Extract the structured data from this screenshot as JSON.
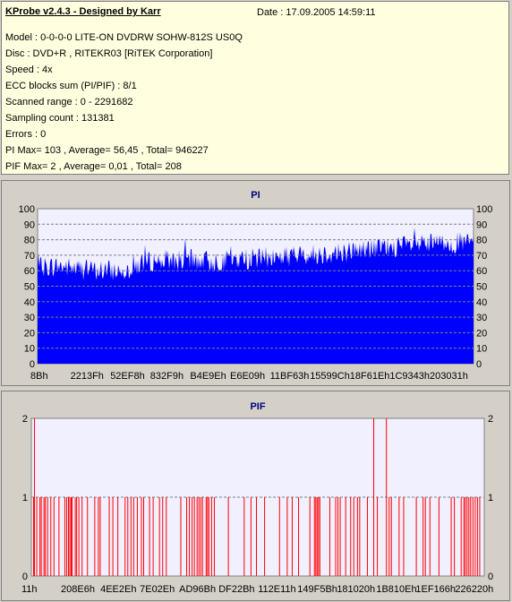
{
  "header": {
    "title": "KProbe v2.4.3 - Designed by Karr",
    "date": "Date : 17.09.2005 14:59:11",
    "lines": [
      "Model : 0-0-0-0 LITE-ON DVDRW SOHW-812S  US0Q",
      "Disc : DVD+R , RITEKR03 [RiTEK Corporation]",
      "Speed : 4x",
      "ECC blocks sum (PI/PIF) : 8/1",
      "Scanned range : 0 - 2291682",
      "Sampling count : 131381",
      "Errors : 0",
      "PI Max= 103 , Average= 56,45 , Total= 946227",
      "PIF Max= 2 , Average= 0,01 , Total= 208"
    ]
  },
  "chart_data": [
    {
      "type": "area",
      "title": "PI",
      "xlabel": "",
      "ylabel": "",
      "ylim": [
        0,
        100
      ],
      "yticks": [
        0,
        10,
        20,
        30,
        40,
        50,
        60,
        70,
        80,
        90,
        100
      ],
      "x_tick_labels": [
        "8Bh",
        "2213Fh",
        "52EF8h",
        "832F9h",
        "B4E9Eh",
        "E6E09h",
        "11BF63h",
        "15599Ch",
        "18F61Eh",
        "1C9343h",
        "203031h"
      ],
      "grid": true,
      "color": "#0000ff",
      "series": [
        {
          "x_range": [
            0,
            2291682
          ],
          "values_sampled_every_5pct": [
            62,
            63,
            61,
            60,
            60,
            66,
            67,
            67,
            66,
            67,
            68,
            69,
            70,
            71,
            72,
            74,
            75,
            76,
            77,
            78,
            78
          ],
          "peak_max": 103
        }
      ]
    },
    {
      "type": "bar",
      "title": "PIF",
      "xlabel": "",
      "ylabel": "",
      "ylim": [
        0,
        2
      ],
      "yticks": [
        0,
        1,
        2
      ],
      "x_tick_labels": [
        "11h",
        "208E6h",
        "4EE2Eh",
        "7E02Eh",
        "AD96Bh",
        "DF22Bh",
        "112E11h",
        "149F5Bh",
        "181020h",
        "1B810Eh",
        "1EF166h",
        "226220h"
      ],
      "grid": true,
      "color": "#ff0000",
      "spikes_2": [
        0.007,
        0.756,
        0.784
      ],
      "spikes_1": [
        0.005,
        0.012,
        0.019,
        0.022,
        0.028,
        0.031,
        0.036,
        0.043,
        0.05,
        0.061,
        0.074,
        0.078,
        0.082,
        0.085,
        0.088,
        0.09,
        0.097,
        0.1,
        0.105,
        0.112,
        0.124,
        0.14,
        0.148,
        0.152,
        0.172,
        0.18,
        0.191,
        0.207,
        0.213,
        0.22,
        0.226,
        0.234,
        0.243,
        0.248,
        0.261,
        0.269,
        0.283,
        0.29,
        0.298,
        0.33,
        0.343,
        0.349,
        0.355,
        0.36,
        0.366,
        0.37,
        0.374,
        0.378,
        0.386,
        0.389,
        0.392,
        0.398,
        0.404,
        0.435,
        0.47,
        0.485,
        0.497,
        0.515,
        0.548,
        0.565,
        0.576,
        0.59,
        0.615,
        0.625,
        0.628,
        0.631,
        0.634,
        0.637,
        0.659,
        0.672,
        0.677,
        0.682,
        0.694,
        0.705,
        0.712,
        0.72,
        0.725,
        0.742,
        0.764,
        0.79,
        0.795,
        0.812,
        0.822,
        0.85,
        0.865,
        0.87,
        0.88,
        0.9,
        0.927,
        0.934,
        0.949,
        0.955,
        0.958,
        0.962,
        0.966,
        0.97,
        0.975,
        0.98,
        0.985,
        0.99
      ]
    }
  ]
}
